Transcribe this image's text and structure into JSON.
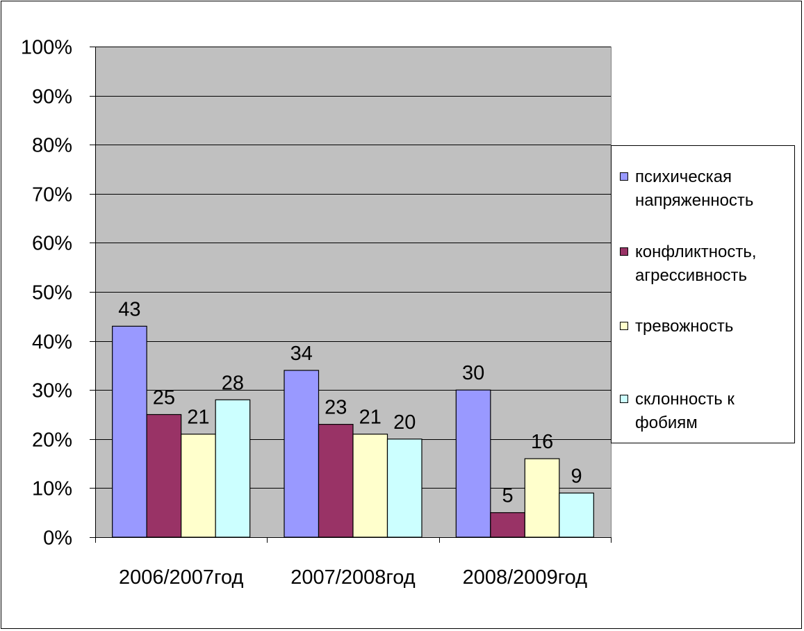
{
  "chart_data": {
    "type": "bar",
    "categories": [
      "2006/2007год",
      "2007/2008год",
      "2008/2009год"
    ],
    "series": [
      {
        "name": "психическая напряженность",
        "color": "#9999FF",
        "values": [
          43,
          34,
          30
        ]
      },
      {
        "name": "конфликтность, агрессивность",
        "color": "#993366",
        "values": [
          25,
          23,
          5
        ]
      },
      {
        "name": "тревожность",
        "color": "#FFFFCC",
        "values": [
          21,
          21,
          16
        ]
      },
      {
        "name": "склонность к фобиям",
        "color": "#CCFFFF",
        "values": [
          28,
          20,
          9
        ]
      }
    ],
    "y_ticks": [
      "0%",
      "10%",
      "20%",
      "30%",
      "40%",
      "50%",
      "60%",
      "70%",
      "80%",
      "90%",
      "100%"
    ],
    "ylim": [
      0,
      100
    ],
    "y_unit": "%",
    "grid": true,
    "plot_background": "#C0C0C0",
    "legend_position": "right",
    "data_labels": true
  }
}
